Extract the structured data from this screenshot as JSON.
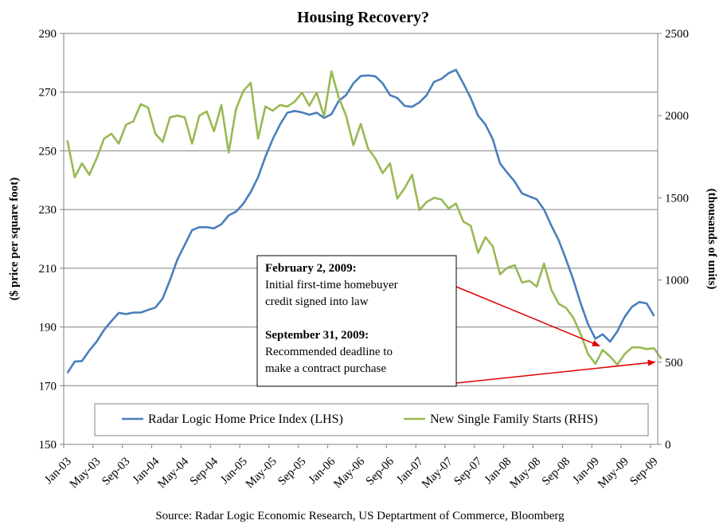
{
  "chart_data": {
    "type": "line",
    "title": "Housing Recovery?",
    "ylabel_left": "($ price per square foot)",
    "ylabel_right": "(thousands of units)",
    "ylim_left": [
      150,
      290
    ],
    "ylim_right": [
      0,
      2500
    ],
    "yticks_left": [
      "150",
      "170",
      "190",
      "210",
      "230",
      "250",
      "270",
      "290"
    ],
    "yticks_right": [
      "0",
      "500",
      "1000",
      "1500",
      "2000",
      "2500"
    ],
    "grid": "horizontal",
    "legend_position": "bottom",
    "x_tick_labels": [
      "Jan-03",
      "May-03",
      "Sep-03",
      "Jan-04",
      "May-04",
      "Sep-04",
      "Jan-05",
      "May-05",
      "Sep-05",
      "Jan-06",
      "May-06",
      "Sep-06",
      "Jan-07",
      "May-07",
      "Sep-07",
      "Jan-08",
      "May-08",
      "Sep-08",
      "Jan-09",
      "May-09",
      "Sep-09"
    ],
    "x_start": "Jan-03",
    "x_end": "Oct-09",
    "colors": {
      "price": "#4a7ebb",
      "starts": "#98b954",
      "arrow": "#e00000",
      "grid": "#808080"
    },
    "series": [
      {
        "name": "Radar Logic Home Price Index (LHS)",
        "axis": "left",
        "values": [
          174.3,
          178.2,
          178.4,
          182.0,
          185.0,
          189.0,
          192.0,
          194.8,
          194.4,
          194.9,
          194.9,
          195.8,
          196.6,
          199.7,
          206.0,
          213.0,
          218.0,
          223.0,
          224.0,
          224.0,
          223.6,
          225.0,
          228.0,
          229.3,
          232.0,
          236.0,
          241.0,
          248.0,
          254.0,
          259.0,
          263.0,
          263.6,
          263.1,
          262.3,
          263.0,
          261.2,
          262.5,
          267.0,
          269.0,
          273.0,
          275.5,
          275.7,
          275.4,
          273.0,
          269.0,
          268.0,
          265.3,
          265.0,
          266.5,
          269.0,
          273.5,
          274.5,
          276.5,
          277.6,
          273.0,
          268.0,
          262.0,
          259.0,
          254.0,
          245.7,
          242.5,
          239.5,
          235.5,
          234.5,
          233.5,
          230.0,
          224.5,
          219.5,
          213.0,
          206.0,
          198.0,
          191.0,
          186.0,
          187.5,
          185.0,
          188.5,
          193.5,
          196.9,
          198.5,
          198.0,
          193.7
        ]
      },
      {
        "name": "New Single Family Starts (RHS)",
        "axis": "right",
        "values": [
          1850,
          1625,
          1710,
          1640,
          1740,
          1860,
          1890,
          1830,
          1945,
          1965,
          2070,
          2050,
          1890,
          1840,
          1990,
          2000,
          1990,
          1830,
          2000,
          2025,
          1905,
          2065,
          1775,
          2040,
          2150,
          2200,
          1860,
          2055,
          2030,
          2065,
          2055,
          2085,
          2140,
          2060,
          2140,
          1995,
          2270,
          2110,
          2000,
          1820,
          1950,
          1800,
          1740,
          1650,
          1710,
          1495,
          1560,
          1640,
          1425,
          1475,
          1500,
          1490,
          1435,
          1465,
          1355,
          1330,
          1165,
          1260,
          1205,
          1035,
          1075,
          1090,
          985,
          995,
          960,
          1100,
          940,
          855,
          830,
          770,
          670,
          550,
          490,
          575,
          535,
          485,
          550,
          590,
          590,
          580,
          585,
          520
        ]
      }
    ],
    "annotations": [
      {
        "date_label": "February 2, 2009:",
        "text": [
          "Initial first-time homebuyer",
          "credit signed into law"
        ]
      },
      {
        "date_label": "September 31, 2009:",
        "text": [
          "Recommended deadline to",
          "make a contract purchase"
        ]
      }
    ],
    "source": "Source:  Radar Logic Economic Research, US Deptartment of Commerce, Bloomberg"
  }
}
